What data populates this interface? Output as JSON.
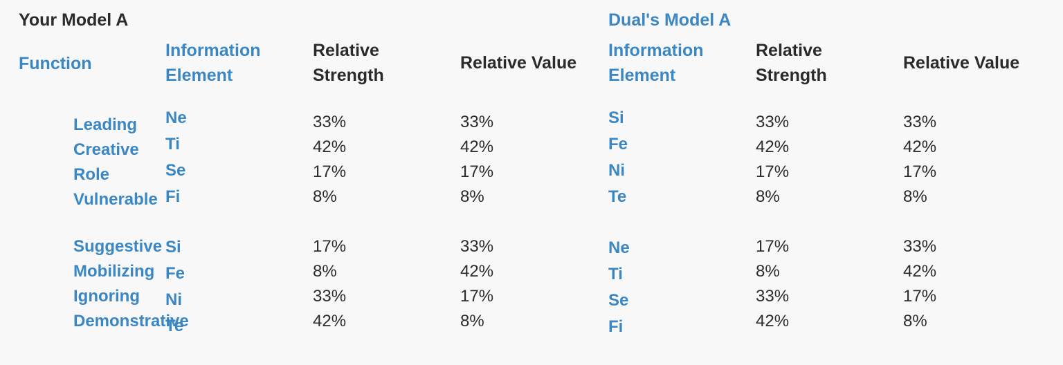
{
  "left": {
    "title": "Your Model A",
    "headers": {
      "function": "Function",
      "info_line1": "Information",
      "info_line2": "Element",
      "strength_line1": "Relative",
      "strength_line2": "Strength",
      "value": "Relative Value"
    },
    "functions_a": [
      "Leading",
      "Creative",
      "Role",
      "Vulnerable"
    ],
    "functions_b": [
      "Suggestive",
      "Mobilizing",
      "Ignoring",
      "Demonstrative"
    ],
    "elements_a": [
      "Ne",
      "Ti",
      "Se",
      "Fi"
    ],
    "elements_b": [
      "Si",
      "Fe",
      "Ni",
      "Te"
    ],
    "strength_a": [
      "33%",
      "42%",
      "17%",
      "8%"
    ],
    "strength_b": [
      "17%",
      "8%",
      "33%",
      "42%"
    ],
    "value_a": [
      "33%",
      "42%",
      "17%",
      "8%"
    ],
    "value_b": [
      "33%",
      "42%",
      "17%",
      "8%"
    ]
  },
  "right": {
    "title": "Dual's Model A",
    "headers": {
      "info_line1": "Information",
      "info_line2": "Element",
      "strength_line1": "Relative",
      "strength_line2": "Strength",
      "value": "Relative Value"
    },
    "elements_a": [
      "Si",
      "Fe",
      "Ni",
      "Te"
    ],
    "elements_b": [
      "Ne",
      "Ti",
      "Se",
      "Fi"
    ],
    "strength_a": [
      "33%",
      "42%",
      "17%",
      "8%"
    ],
    "strength_b": [
      "17%",
      "8%",
      "33%",
      "42%"
    ],
    "value_a": [
      "33%",
      "42%",
      "17%",
      "8%"
    ],
    "value_b": [
      "33%",
      "42%",
      "17%",
      "8%"
    ]
  }
}
